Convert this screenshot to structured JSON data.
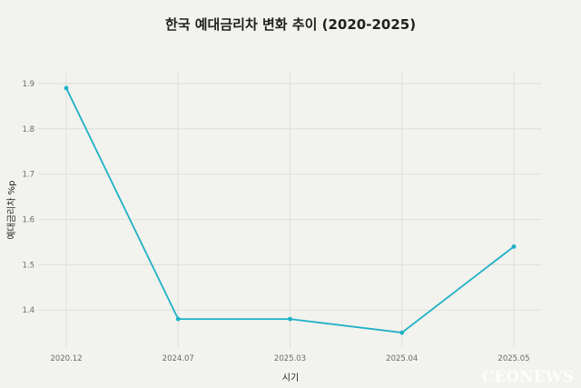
{
  "chart_data": {
    "type": "line",
    "title": "한국 예대금리차 변화 추이 (2020-2025)",
    "xlabel": "시기",
    "ylabel": "예대금리차 %p",
    "categories": [
      "2020.12",
      "2024.07",
      "2025.03",
      "2025.04",
      "2025.05"
    ],
    "values": [
      1.89,
      1.38,
      1.38,
      1.35,
      1.54
    ],
    "yticks": [
      1.4,
      1.5,
      1.6,
      1.7,
      1.8,
      1.9
    ],
    "ylim": [
      1.316,
      1.924
    ],
    "grid": true,
    "line_color": "#1fb1c6"
  },
  "watermark": "CEONEWS"
}
